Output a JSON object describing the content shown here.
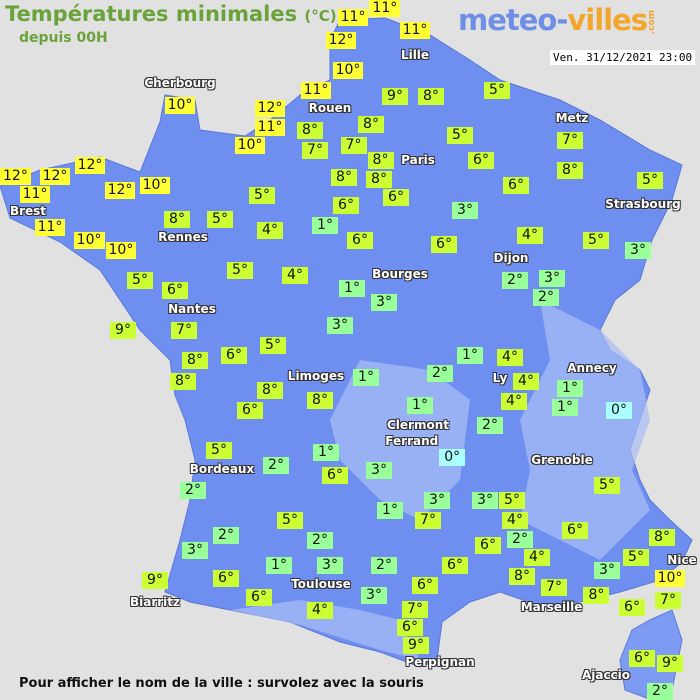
{
  "header": {
    "title": "Températures minimales",
    "unit": "(°C)",
    "subtitle": "depuis 00H",
    "logo_part1": "meteo-",
    "logo_part2": "villes",
    "logo_suffix": ".com",
    "datetime": "Ven. 31/12/2021 23:00"
  },
  "footer": {
    "hint": "Pour afficher le nom de la ville : survolez avec la souris"
  },
  "colors": {
    "background": "#e1e1e1",
    "land": "#6f8ff0",
    "corsica": "#7d9bf2",
    "temp_10_plus": "#ffff33",
    "temp_4_to_9": "#ccff33",
    "temp_1_to_3": "#99ff99",
    "temp_0": "#aaffff",
    "title": "#6aa33a"
  },
  "cities": [
    "Cherbourg",
    "Lille",
    "Rouen",
    "Paris",
    "Metz",
    "Strasbourg",
    "Brest",
    "Rennes",
    "Nantes",
    "Bourges",
    "Dijon",
    "Limoges",
    "Ly",
    "Annecy",
    "Clermont",
    "Ferrand",
    "Grenoble",
    "Bordeaux",
    "Toulouse",
    "Biarritz",
    "Marseille",
    "Nice",
    "Perpignan",
    "Ajaccio"
  ],
  "temperatures": [
    "11°",
    "11°",
    "12°",
    "11°",
    "10°",
    "11°",
    "9°",
    "8°",
    "5°",
    "12°",
    "11°",
    "8°",
    "8°",
    "10°",
    "7°",
    "7°",
    "8°",
    "5°",
    "6°",
    "7°",
    "8°",
    "10°",
    "12°",
    "12°",
    "12°",
    "11°",
    "12°",
    "10°",
    "8°",
    "8°",
    "6°",
    "6°",
    "5°",
    "5°",
    "8°",
    "5°",
    "11°",
    "4°",
    "1°",
    "6°",
    "3°",
    "4°",
    "10°",
    "10°",
    "6°",
    "6°",
    "5°",
    "3°",
    "5°",
    "6°",
    "5°",
    "4°",
    "1°",
    "3°",
    "2°",
    "3°",
    "2°",
    "9°",
    "7°",
    "3°",
    "8°",
    "6°",
    "5°",
    "8°",
    "8°",
    "1°",
    "2°",
    "1°",
    "4°",
    "4°",
    "4°",
    "1°",
    "1°",
    "0°",
    "6°",
    "8°",
    "1°",
    "2°",
    "0°",
    "5°",
    "1°",
    "2°",
    "6°",
    "3°",
    "2°",
    "3°",
    "3°",
    "5°",
    "5°",
    "1°",
    "7°",
    "4°",
    "5°",
    "6°",
    "2°",
    "3°",
    "2°",
    "6°",
    "2°",
    "8°",
    "5°",
    "4°",
    "1°",
    "3°",
    "2°",
    "6°",
    "3°",
    "10°",
    "8°",
    "9°",
    "6°",
    "7°",
    "6°",
    "3°",
    "6°",
    "8°",
    "6°",
    "7°",
    "4°",
    "7°",
    "6°",
    "9°",
    "6°",
    "9°",
    "2°"
  ]
}
